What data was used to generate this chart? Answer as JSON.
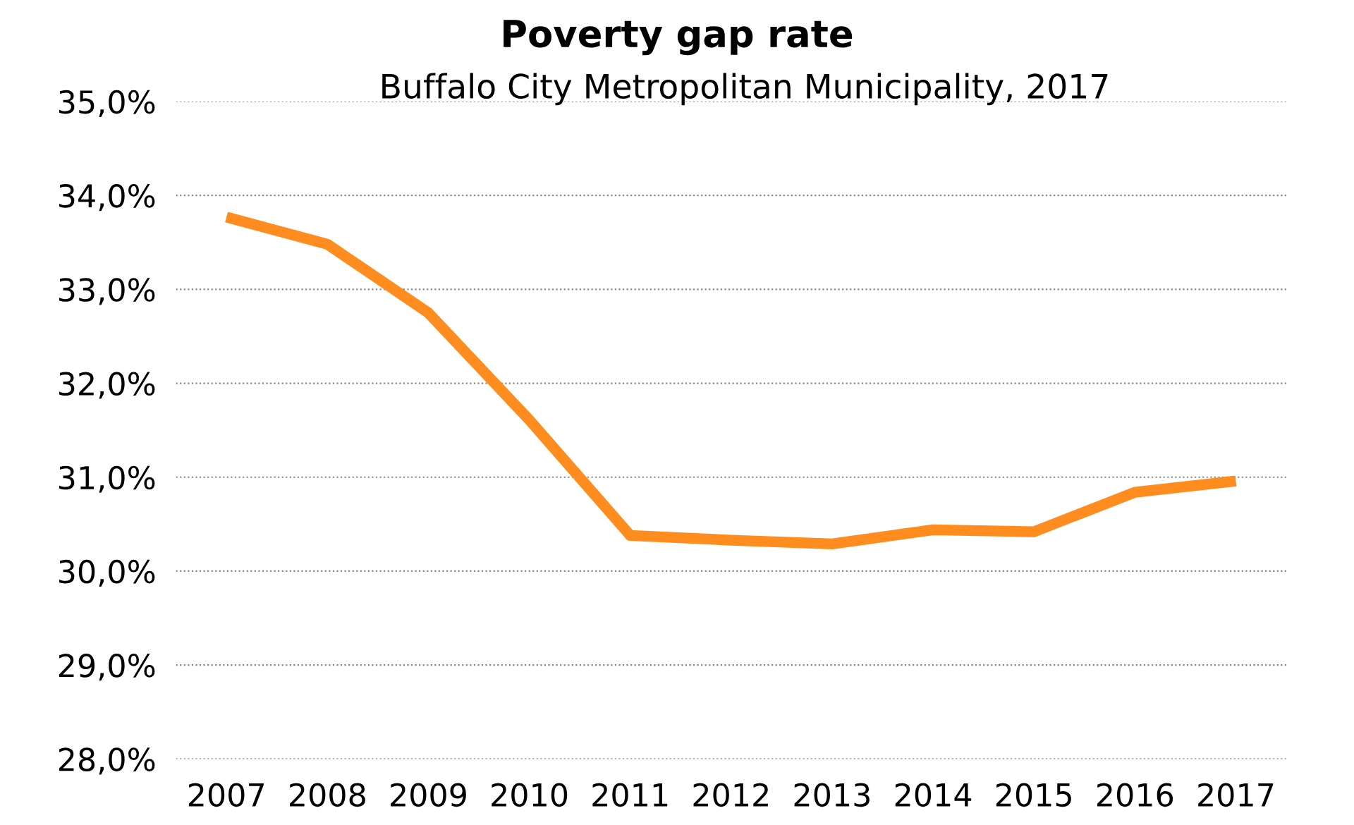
{
  "chart_data": {
    "type": "line",
    "title": "Poverty gap rate",
    "subtitle": "Buffalo City Metropolitan Municipality, 2017",
    "categories": [
      "2007",
      "2008",
      "2009",
      "2010",
      "2011",
      "2012",
      "2013",
      "2014",
      "2015",
      "2016",
      "2017"
    ],
    "series": [
      {
        "color": "#ff8c1e",
        "values": [
          33.77,
          33.48,
          32.75,
          31.61,
          30.38,
          30.33,
          30.29,
          30.44,
          30.42,
          30.84,
          30.96
        ]
      }
    ],
    "ylim": [
      28,
      35
    ],
    "yticks": [
      {
        "value": 28,
        "label": "28,0%"
      },
      {
        "value": 29,
        "label": "29,0%"
      },
      {
        "value": 30,
        "label": "30,0%"
      },
      {
        "value": 31,
        "label": "31,0%"
      },
      {
        "value": 32,
        "label": "32,0%"
      },
      {
        "value": 33,
        "label": "33,0%"
      },
      {
        "value": 34,
        "label": "34,0%"
      },
      {
        "value": 35,
        "label": "35,0%"
      }
    ],
    "grid": "y",
    "marker": "none",
    "line_style": "solid"
  }
}
